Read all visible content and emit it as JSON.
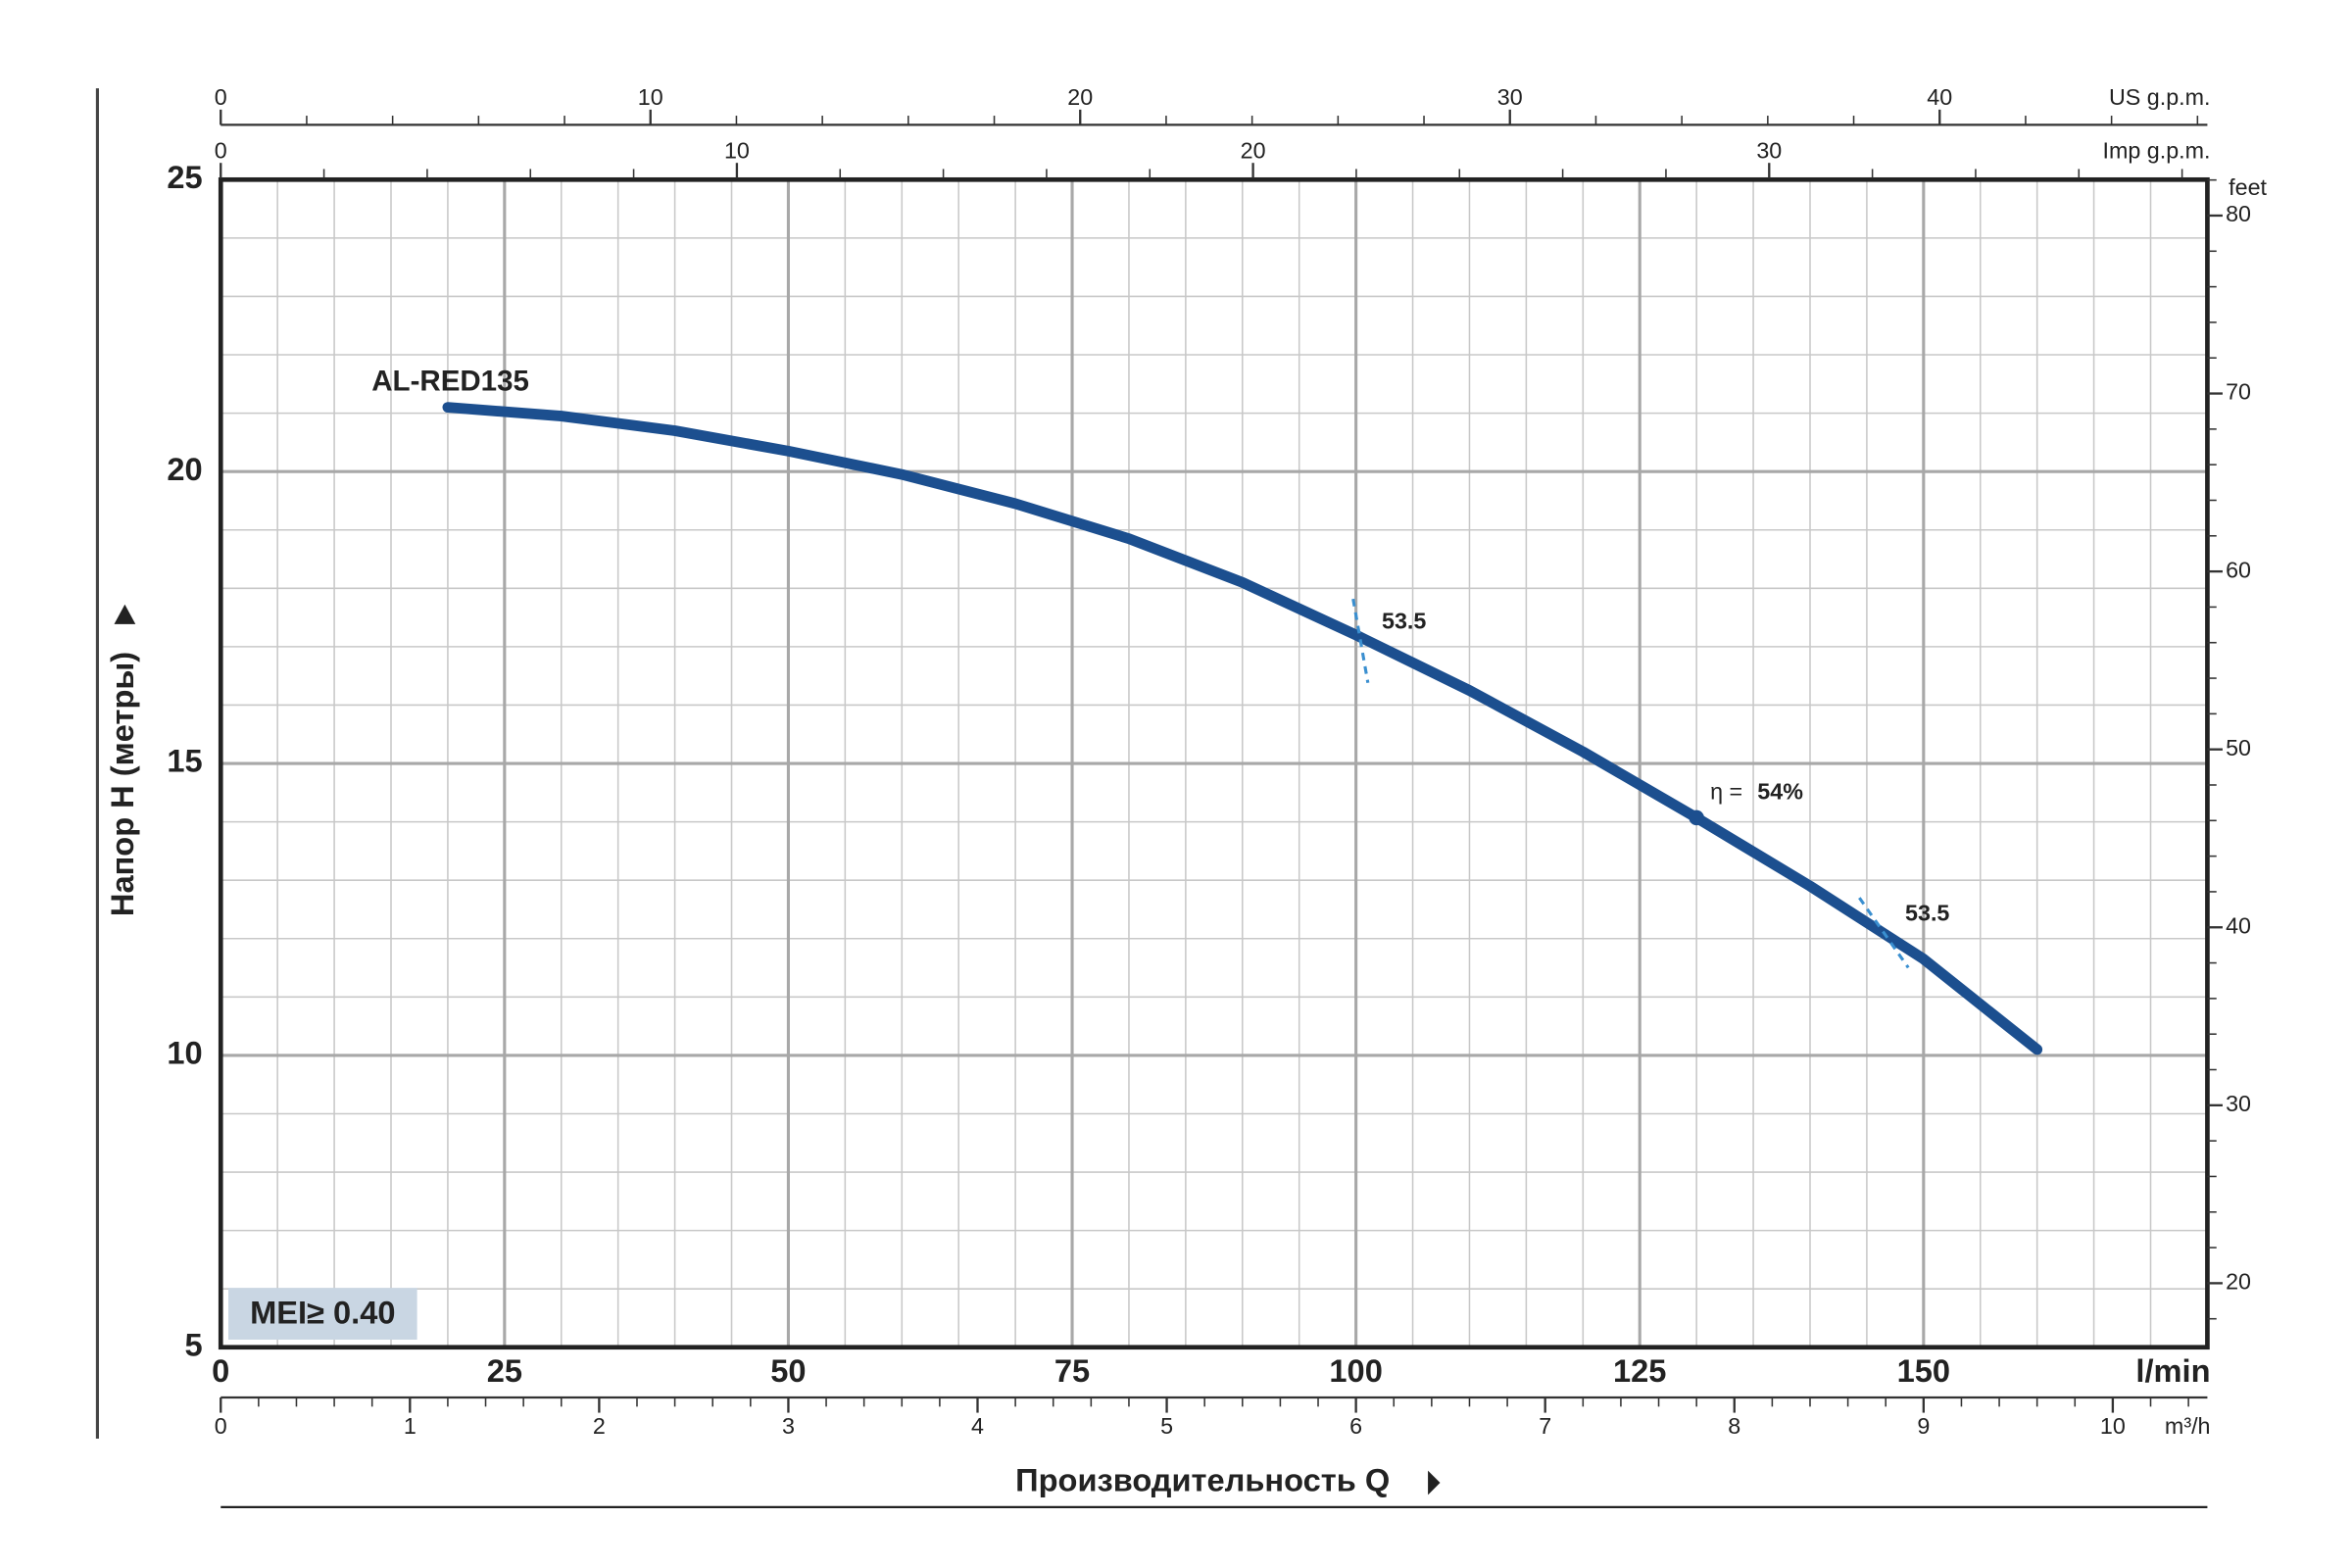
{
  "chart_data": {
    "type": "line",
    "title_y": "Напор H (метры)",
    "title_x": "Производительность Q",
    "x_unit": "l/min",
    "x": [
      20,
      30,
      40,
      50,
      60,
      70,
      80,
      90,
      100,
      110,
      120,
      130,
      140,
      150,
      160
    ],
    "series": [
      {
        "name": "AL-RED135",
        "color": "#1c4f8f",
        "values": [
          21.1,
          20.95,
          20.7,
          20.35,
          19.95,
          19.45,
          18.85,
          18.1,
          17.2,
          16.25,
          15.2,
          14.07,
          12.9,
          11.65,
          10.1
        ]
      }
    ],
    "xlim": [
      0,
      175
    ],
    "xticks": [
      0,
      25,
      50,
      75,
      100,
      125,
      150
    ],
    "ylim": [
      5,
      25
    ],
    "yticks": [
      5,
      10,
      15,
      20,
      25
    ],
    "grid": true,
    "x_grid_step": 5,
    "y_grid_step": 1,
    "efficiency": {
      "label": "η =",
      "text": "54%",
      "x": 130,
      "y": 14.07
    },
    "iso_efficiency": [
      {
        "label": "53.5",
        "x": 100.4,
        "y": 17.1
      },
      {
        "label": "53.5",
        "x": 146.5,
        "y": 12.1
      }
    ],
    "badge": "MEI≥ 0.40",
    "secondary_axes": [
      {
        "unit": "US g.p.m.",
        "position": "top",
        "lim": [
          0,
          46.23
        ],
        "ticks": [
          0,
          10,
          20,
          30,
          40
        ],
        "minor_step": 2
      },
      {
        "unit": "Imp g.p.m.",
        "position": "top-inner",
        "lim": [
          0,
          38.49
        ],
        "ticks": [
          0,
          10,
          20,
          30
        ],
        "minor_step": 2
      },
      {
        "unit": "m³/h",
        "position": "bottom",
        "lim": [
          0,
          10.5
        ],
        "ticks": [
          0,
          1,
          2,
          3,
          4,
          5,
          6,
          7,
          8,
          9,
          10
        ],
        "minor_step": 0.2
      },
      {
        "unit": "feet",
        "position": "right",
        "lim": [
          16.4,
          82.02
        ],
        "ticks": [
          20,
          30,
          40,
          50,
          60,
          70,
          80
        ],
        "minor_step": 2
      }
    ]
  }
}
